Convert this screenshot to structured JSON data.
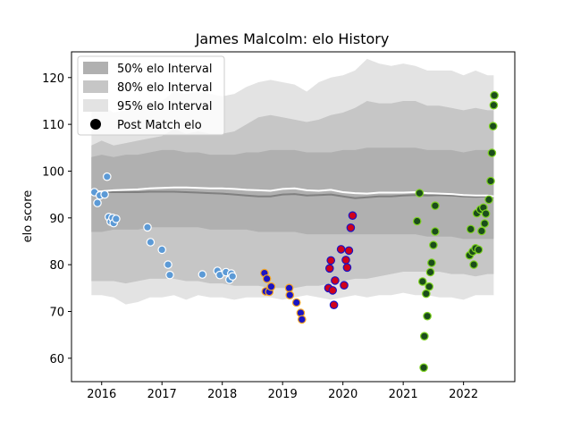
{
  "chart_data": {
    "type": "scatter",
    "title": "James Malcolm: elo History",
    "xlabel": "",
    "ylabel": "elo score",
    "xlim": [
      2015.5,
      2022.85
    ],
    "ylim": [
      55,
      125.5
    ],
    "x_ticks": [
      2016,
      2017,
      2018,
      2019,
      2020,
      2021,
      2022
    ],
    "x_tick_labels": [
      "2016",
      "2017",
      "2018",
      "2019",
      "2020",
      "2021",
      "2022"
    ],
    "y_ticks": [
      60,
      70,
      80,
      90,
      100,
      110,
      120
    ],
    "y_tick_labels": [
      "60",
      "70",
      "80",
      "90",
      "100",
      "110",
      "120"
    ],
    "grid": false,
    "legend_position": "top-left",
    "legend": [
      {
        "label": "50% elo Interval",
        "kind": "band",
        "color": "#b0b0b0"
      },
      {
        "label": "80% elo Interval",
        "kind": "band",
        "color": "#c6c6c6"
      },
      {
        "label": "95% elo Interval",
        "kind": "band",
        "color": "#e3e3e3"
      },
      {
        "label": "Post Match elo",
        "kind": "marker",
        "color": "#000000"
      }
    ],
    "bands": {
      "x": [
        2015.83,
        2016.0,
        2016.2,
        2016.4,
        2016.6,
        2016.8,
        2017.0,
        2017.2,
        2017.4,
        2017.6,
        2017.8,
        2018.0,
        2018.2,
        2018.4,
        2018.6,
        2018.8,
        2019.0,
        2019.2,
        2019.4,
        2019.6,
        2019.8,
        2020.0,
        2020.2,
        2020.4,
        2020.6,
        2020.8,
        2021.0,
        2021.2,
        2021.4,
        2021.6,
        2021.8,
        2022.0,
        2022.2,
        2022.4,
        2022.5
      ],
      "p95_upper": [
        114.5,
        114.0,
        112.5,
        113.0,
        114.5,
        114.5,
        115.0,
        117.0,
        116.5,
        117.0,
        116.5,
        116.0,
        116.5,
        118.0,
        119.0,
        119.5,
        119.0,
        118.5,
        117.0,
        119.0,
        120.0,
        120.5,
        121.5,
        124.0,
        123.0,
        122.5,
        123.0,
        122.5,
        121.5,
        121.5,
        121.5,
        120.5,
        121.5,
        120.5,
        120.5
      ],
      "p80_upper": [
        105.5,
        106.5,
        105.5,
        106.0,
        106.5,
        107.0,
        107.5,
        109.0,
        108.0,
        108.5,
        108.0,
        108.0,
        108.5,
        110.0,
        111.5,
        112.0,
        111.5,
        111.0,
        110.5,
        111.0,
        112.0,
        112.5,
        113.5,
        115.0,
        114.5,
        114.5,
        115.0,
        115.0,
        114.0,
        114.0,
        113.5,
        113.0,
        113.5,
        113.0,
        113.0
      ],
      "p50_upper": [
        103.0,
        103.5,
        103.0,
        103.5,
        103.5,
        104.0,
        104.5,
        104.5,
        104.0,
        104.0,
        103.5,
        103.5,
        103.5,
        104.0,
        104.0,
        104.5,
        104.5,
        104.5,
        104.0,
        104.0,
        104.0,
        104.5,
        104.5,
        105.0,
        105.0,
        105.0,
        105.0,
        105.0,
        104.5,
        104.5,
        104.5,
        104.0,
        104.5,
        104.5,
        104.5
      ],
      "p50_lower": [
        87.0,
        87.0,
        87.5,
        87.5,
        87.5,
        88.0,
        88.0,
        88.0,
        88.0,
        88.0,
        87.5,
        87.5,
        87.5,
        87.5,
        87.0,
        87.0,
        87.0,
        87.0,
        86.5,
        86.5,
        86.5,
        86.5,
        86.5,
        86.5,
        86.5,
        86.5,
        86.5,
        86.5,
        86.0,
        86.0,
        86.0,
        85.5,
        85.5,
        85.5,
        85.5
      ],
      "p80_lower": [
        76.5,
        76.5,
        76.5,
        76.0,
        76.5,
        77.0,
        77.0,
        77.0,
        76.5,
        76.5,
        76.0,
        76.0,
        75.5,
        75.5,
        75.5,
        75.0,
        75.0,
        75.0,
        75.5,
        75.5,
        76.0,
        76.5,
        77.0,
        77.0,
        77.5,
        78.0,
        78.5,
        78.5,
        78.5,
        78.5,
        78.0,
        78.0,
        77.5,
        78.0,
        78.0
      ],
      "p95_lower": [
        73.5,
        73.5,
        73.0,
        71.5,
        72.0,
        73.0,
        73.0,
        73.5,
        72.5,
        73.5,
        73.0,
        73.0,
        72.5,
        73.0,
        73.0,
        73.0,
        72.5,
        73.0,
        73.5,
        73.0,
        72.5,
        73.0,
        73.5,
        73.0,
        73.5,
        73.5,
        74.0,
        73.5,
        73.5,
        73.0,
        73.0,
        72.5,
        73.5,
        73.5,
        73.5
      ],
      "median": [
        95.5,
        95.5,
        95.5,
        95.5,
        95.5,
        95.6,
        95.6,
        95.6,
        95.5,
        95.4,
        95.3,
        95.2,
        95.0,
        94.8,
        94.6,
        94.6,
        95.0,
        95.1,
        94.8,
        94.9,
        95.0,
        94.6,
        94.2,
        94.4,
        94.6,
        94.6,
        94.8,
        94.9,
        94.8,
        94.9,
        94.8,
        94.6,
        94.5,
        94.6,
        94.4
      ],
      "mean": [
        95.6,
        95.7,
        95.9,
        96.0,
        96.1,
        96.3,
        96.4,
        96.5,
        96.5,
        96.4,
        96.3,
        96.3,
        96.2,
        96.0,
        95.9,
        95.8,
        96.2,
        96.3,
        95.9,
        95.8,
        96.0,
        95.5,
        95.3,
        95.2,
        95.4,
        95.4,
        95.4,
        95.5,
        95.3,
        95.2,
        95.1,
        94.9,
        94.8,
        94.8,
        94.6
      ],
      "median_color": "#808080",
      "mean_color": "#ffffff",
      "p50_color": "#b0b0b0",
      "p80_color": "#c6c6c6",
      "p95_color": "#e3e3e3"
    },
    "series": [
      {
        "fill": "#5c9ad6",
        "stroke": "#ffffff",
        "points": [
          [
            2015.88,
            95.5
          ],
          [
            2015.93,
            93.2
          ],
          [
            2015.97,
            94.8
          ],
          [
            2016.05,
            95.0
          ],
          [
            2016.09,
            98.8
          ],
          [
            2016.12,
            90.2
          ],
          [
            2016.15,
            89.2
          ],
          [
            2016.18,
            90.0
          ],
          [
            2016.2,
            88.9
          ],
          [
            2016.24,
            89.8
          ],
          [
            2016.76,
            88.0
          ],
          [
            2016.81,
            84.8
          ],
          [
            2017.0,
            83.2
          ],
          [
            2017.1,
            80.0
          ],
          [
            2017.13,
            77.8
          ],
          [
            2017.67,
            77.9
          ],
          [
            2017.92,
            78.7
          ],
          [
            2017.96,
            77.8
          ],
          [
            2018.06,
            78.4
          ],
          [
            2018.12,
            76.8
          ],
          [
            2018.15,
            78.1
          ],
          [
            2018.17,
            77.5
          ]
        ]
      },
      {
        "fill": "#1a14c4",
        "stroke": "#f5a623",
        "points": [
          [
            2018.7,
            78.2
          ],
          [
            2018.72,
            74.3
          ],
          [
            2018.74,
            77.0
          ],
          [
            2018.78,
            74.2
          ],
          [
            2018.81,
            75.3
          ],
          [
            2019.11,
            75.0
          ],
          [
            2019.12,
            73.5
          ],
          [
            2019.23,
            71.9
          ],
          [
            2019.3,
            69.7
          ],
          [
            2019.32,
            68.3
          ]
        ]
      },
      {
        "fill": "#d0021b",
        "stroke": "#1a14c4",
        "points": [
          [
            2019.76,
            75.0
          ],
          [
            2019.78,
            79.2
          ],
          [
            2019.8,
            80.9
          ],
          [
            2019.83,
            74.5
          ],
          [
            2019.85,
            71.4
          ],
          [
            2019.87,
            76.6
          ],
          [
            2019.97,
            83.3
          ],
          [
            2020.02,
            75.6
          ],
          [
            2020.05,
            81.0
          ],
          [
            2020.07,
            79.4
          ],
          [
            2020.1,
            83.0
          ],
          [
            2020.13,
            87.9
          ],
          [
            2020.16,
            90.5
          ]
        ]
      },
      {
        "fill": "#1b4d1b",
        "stroke": "#7ed321",
        "points": [
          [
            2021.23,
            89.3
          ],
          [
            2021.27,
            95.3
          ],
          [
            2021.32,
            76.4
          ],
          [
            2021.34,
            58.0
          ],
          [
            2021.35,
            64.7
          ],
          [
            2021.38,
            73.8
          ],
          [
            2021.4,
            69.0
          ],
          [
            2021.43,
            75.3
          ],
          [
            2021.45,
            78.4
          ],
          [
            2021.47,
            80.4
          ],
          [
            2021.5,
            84.2
          ],
          [
            2021.53,
            87.1
          ],
          [
            2021.53,
            92.6
          ],
          [
            2022.1,
            82.0
          ],
          [
            2022.12,
            87.6
          ],
          [
            2022.15,
            82.8
          ],
          [
            2022.17,
            80.0
          ],
          [
            2022.2,
            83.5
          ],
          [
            2022.22,
            91.0
          ],
          [
            2022.25,
            83.2
          ],
          [
            2022.28,
            91.8
          ],
          [
            2022.3,
            87.2
          ],
          [
            2022.33,
            92.2
          ],
          [
            2022.35,
            88.8
          ],
          [
            2022.37,
            90.9
          ],
          [
            2022.42,
            93.9
          ],
          [
            2022.45,
            97.9
          ],
          [
            2022.47,
            103.9
          ],
          [
            2022.49,
            109.6
          ],
          [
            2022.5,
            114.1
          ],
          [
            2022.51,
            116.2
          ]
        ]
      }
    ]
  }
}
